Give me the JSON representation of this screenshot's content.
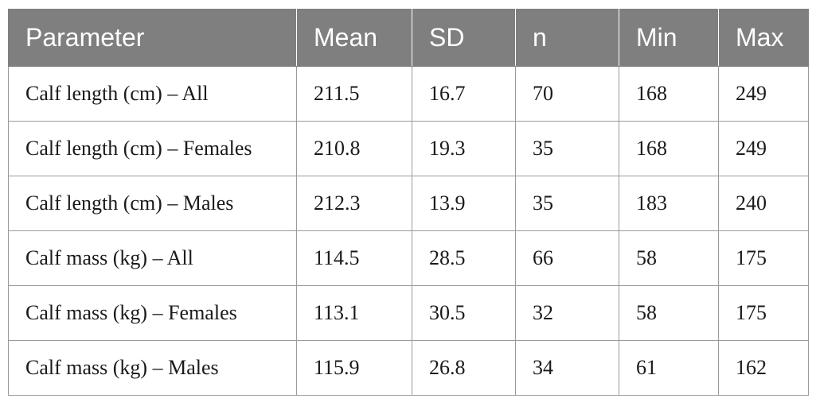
{
  "table": {
    "headers": [
      "Parameter",
      "Mean",
      "SD",
      "n",
      "Min",
      "Max"
    ],
    "rows": [
      [
        "Calf length (cm) – All",
        "211.5",
        "16.7",
        "70",
        "168",
        "249"
      ],
      [
        "Calf length (cm) – Females",
        "210.8",
        "19.3",
        "35",
        "168",
        "249"
      ],
      [
        "Calf length (cm) – Males",
        "212.3",
        "13.9",
        "35",
        "183",
        "240"
      ],
      [
        "Calf mass (kg) – All",
        "114.5",
        "28.5",
        "66",
        "58",
        "175"
      ],
      [
        "Calf mass (kg) – Females",
        "113.1",
        "30.5",
        "32",
        "58",
        "175"
      ],
      [
        "Calf mass (kg) – Males",
        "115.9",
        "26.8",
        "34",
        "61",
        "162"
      ]
    ]
  },
  "colors": {
    "header_background": "#7f7f7f",
    "header_text": "#ffffff",
    "border": "#9a9a9a"
  }
}
